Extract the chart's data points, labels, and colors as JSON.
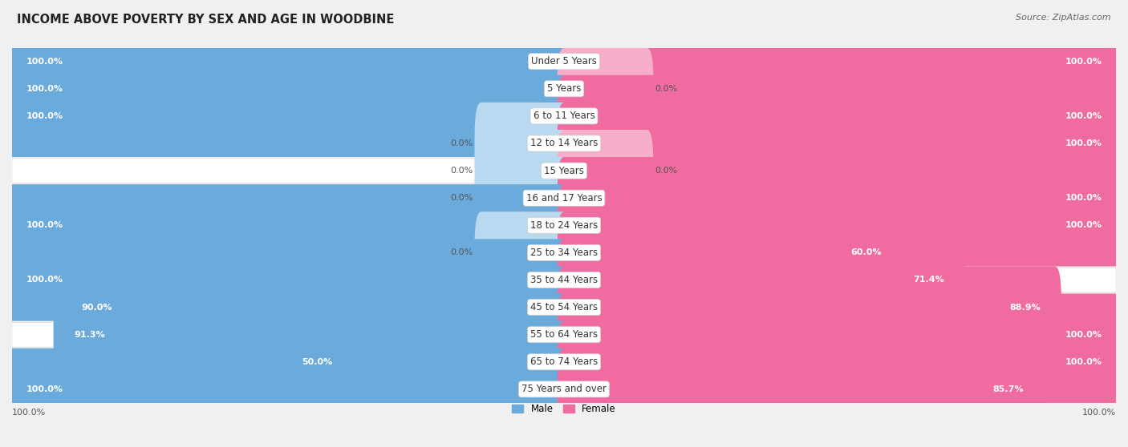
{
  "title": "INCOME ABOVE POVERTY BY SEX AND AGE IN WOODBINE",
  "source": "Source: ZipAtlas.com",
  "categories": [
    "Under 5 Years",
    "5 Years",
    "6 to 11 Years",
    "12 to 14 Years",
    "15 Years",
    "16 and 17 Years",
    "18 to 24 Years",
    "25 to 34 Years",
    "35 to 44 Years",
    "45 to 54 Years",
    "55 to 64 Years",
    "65 to 74 Years",
    "75 Years and over"
  ],
  "male": [
    100.0,
    100.0,
    100.0,
    0.0,
    0.0,
    0.0,
    100.0,
    0.0,
    100.0,
    90.0,
    91.3,
    50.0,
    100.0
  ],
  "female": [
    100.0,
    0.0,
    100.0,
    100.0,
    0.0,
    100.0,
    100.0,
    60.0,
    71.4,
    88.9,
    100.0,
    100.0,
    85.7
  ],
  "male_color": "#6aabdb",
  "male_color_light": "#b8d9f0",
  "female_color": "#f06ba0",
  "female_color_light": "#f7aecb",
  "male_label": "Male",
  "female_label": "Female",
  "row_bg_odd": "#f7f7f7",
  "row_bg_even": "#ffffff",
  "label_pill_color": "#ffffff",
  "max_val": 100.0,
  "title_fontsize": 10.5,
  "source_fontsize": 8.0,
  "cat_label_fontsize": 8.5,
  "bar_label_fontsize": 8.0,
  "bar_height": 0.6,
  "stub_size": 15.0,
  "label_threshold": 20.0
}
